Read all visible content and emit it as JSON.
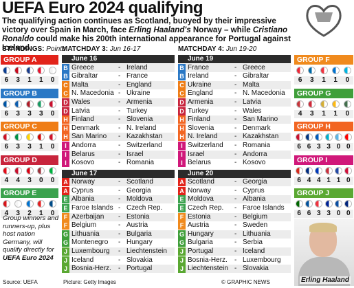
{
  "header": {
    "title": "UEFA Euro 2024 qualifying",
    "subtitle": [
      "The qualifying action continues as Scotland, buoyed by their impressive victory over Spain in March, face ",
      "Erling Haaland's",
      " Norway – while ",
      "Cristiano Ronaldo",
      " could make his 200th international appearance for Portugal against Iceland"
    ]
  },
  "standings_label": "STANDINGS:",
  "standings_unit": "Points",
  "separator": "-",
  "matchdays": [
    {
      "label": "MATCHDAY 3:",
      "dates": "Jun 16-17",
      "days": [
        {
          "date": "June 16",
          "fixtures": [
            {
              "group": "B",
              "home": "Greece",
              "away": "Ireland"
            },
            {
              "group": "B",
              "home": "Gibraltar",
              "away": "France"
            },
            {
              "group": "C",
              "home": "Malta",
              "away": "England"
            },
            {
              "group": "C",
              "home": "N. Macedonia",
              "away": "Ukraine"
            },
            {
              "group": "D",
              "home": "Wales",
              "away": "Armenia"
            },
            {
              "group": "D",
              "home": "Latvia",
              "away": "Turkey"
            },
            {
              "group": "H",
              "home": "Finland",
              "away": "Slovenia"
            },
            {
              "group": "H",
              "home": "Denmark",
              "away": "N. Ireland"
            },
            {
              "group": "H",
              "home": "San Marino",
              "away": "Kazakhstan"
            },
            {
              "group": "I",
              "home": "Andorra",
              "away": "Switzerland"
            },
            {
              "group": "I",
              "home": "Belarus",
              "away": "Israel"
            },
            {
              "group": "I",
              "home": "Kosovo",
              "away": "Romania"
            }
          ]
        },
        {
          "date": "June 17",
          "fixtures": [
            {
              "group": "A",
              "home": "Norway",
              "away": "Scotland"
            },
            {
              "group": "A",
              "home": "Cyprus",
              "away": "Georgia"
            },
            {
              "group": "E",
              "home": "Albania",
              "away": "Moldova"
            },
            {
              "group": "E",
              "home": "Faroe Islands",
              "away": "Czech Rep."
            },
            {
              "group": "F",
              "home": "Azerbaijan",
              "away": "Estonia"
            },
            {
              "group": "F",
              "home": "Belgium",
              "away": "Austria"
            },
            {
              "group": "G",
              "home": "Lithuania",
              "away": "Bulgaria"
            },
            {
              "group": "G",
              "home": "Montenegro",
              "away": "Hungary"
            },
            {
              "group": "J",
              "home": "Luxembourg",
              "away": "Liechtenstein"
            },
            {
              "group": "J",
              "home": "Iceland",
              "away": "Slovakia"
            },
            {
              "group": "J",
              "home": "Bosnia-Herz.",
              "away": "Portugal"
            }
          ]
        }
      ]
    },
    {
      "label": "MATCHDAY 4:",
      "dates": "Jun 19-20",
      "days": [
        {
          "date": "June 19",
          "fixtures": [
            {
              "group": "B",
              "home": "France",
              "away": "Greece"
            },
            {
              "group": "B",
              "home": "Ireland",
              "away": "Gibraltar"
            },
            {
              "group": "C",
              "home": "Ukraine",
              "away": "Malta"
            },
            {
              "group": "C",
              "home": "England",
              "away": "N. Macedonia"
            },
            {
              "group": "D",
              "home": "Armenia",
              "away": "Latvia"
            },
            {
              "group": "D",
              "home": "Turkey",
              "away": "Wales"
            },
            {
              "group": "H",
              "home": "Finland",
              "away": "San Marino"
            },
            {
              "group": "H",
              "home": "Slovenia",
              "away": "Denmark"
            },
            {
              "group": "H",
              "home": "N. Ireland",
              "away": "Kazakhstan"
            },
            {
              "group": "I",
              "home": "Switzerland",
              "away": "Romania"
            },
            {
              "group": "I",
              "home": "Israel",
              "away": "Andorra"
            },
            {
              "group": "I",
              "home": "Belarus",
              "away": "Kosovo"
            }
          ]
        },
        {
          "date": "June 20",
          "fixtures": [
            {
              "group": "A",
              "home": "Scotland",
              "away": "Georgia"
            },
            {
              "group": "A",
              "home": "Norway",
              "away": "Cyprus"
            },
            {
              "group": "E",
              "home": "Moldova",
              "away": "Albania"
            },
            {
              "group": "E",
              "home": "Czech Rep.",
              "away": "Faroe Islands"
            },
            {
              "group": "F",
              "home": "Estonia",
              "away": "Belgium"
            },
            {
              "group": "F",
              "home": "Austria",
              "away": "Sweden"
            },
            {
              "group": "G",
              "home": "Hungary",
              "away": "Lithuania"
            },
            {
              "group": "G",
              "home": "Bulgaria",
              "away": "Serbia"
            },
            {
              "group": "J",
              "home": "Portugal",
              "away": "Iceland"
            },
            {
              "group": "J",
              "home": "Bosnia-Herz.",
              "away": "Luxembourg"
            },
            {
              "group": "J",
              "home": "Liechtenstein",
              "away": "Slovakia"
            }
          ]
        }
      ]
    }
  ],
  "groups": [
    {
      "name": "GROUP A",
      "letter": "A",
      "color": "#e2231a",
      "points": [
        6,
        3,
        1,
        1,
        0
      ]
    },
    {
      "name": "GROUP B",
      "letter": "B",
      "color": "#2a78c5",
      "points": [
        6,
        3,
        3,
        3,
        0
      ]
    },
    {
      "name": "GROUP C",
      "letter": "C",
      "color": "#ef7d16",
      "points": [
        6,
        3,
        3,
        1,
        0
      ]
    },
    {
      "name": "GROUP D",
      "letter": "D",
      "color": "#c8243c",
      "points": [
        4,
        4,
        3,
        0,
        0
      ]
    },
    {
      "name": "GROUP E",
      "letter": "E",
      "color": "#3ba24e",
      "points": [
        4,
        3,
        2,
        1,
        0
      ]
    },
    {
      "name": "GROUP F",
      "letter": "F",
      "color": "#f08a1d",
      "points": [
        6,
        3,
        1,
        1,
        0
      ]
    },
    {
      "name": "GROUP G",
      "letter": "G",
      "color": "#3f9f3a",
      "points": [
        4,
        3,
        1,
        1,
        0
      ]
    },
    {
      "name": "GROUP H",
      "letter": "H",
      "color": "#f26522",
      "points": [
        6,
        6,
        3,
        3,
        0,
        0
      ]
    },
    {
      "name": "GROUP I",
      "letter": "I",
      "color": "#d0187a",
      "points": [
        6,
        4,
        4,
        1,
        1,
        0
      ]
    },
    {
      "name": "GROUP J",
      "letter": "J",
      "color": "#5aa832",
      "points": [
        6,
        6,
        3,
        3,
        0,
        0
      ]
    }
  ],
  "footer": {
    "note": "Group winners and runners-up, plus host nation Germany, will qualify directly for ",
    "note_bold": "UEFA Euro 2024",
    "source": "Source: UEFA",
    "picture": "Picture: Getty Images",
    "credit": "© GRAPHIC NEWS",
    "caption": "Erling Haaland"
  }
}
